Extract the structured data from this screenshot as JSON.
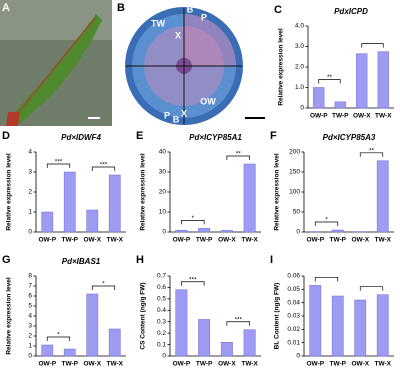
{
  "images": [
    {
      "panel": "A"
    },
    {
      "panel": "B",
      "labels": [
        "TW",
        "X",
        "P",
        "B",
        "OW",
        "X",
        "P",
        "B"
      ]
    }
  ],
  "chart_data": [
    {
      "type": "bar",
      "panel": "C",
      "title": "PdxICPD",
      "y_label": "Relative expression level",
      "categories": [
        "OW-P",
        "TW-P",
        "OW-X",
        "TW-X"
      ],
      "values": [
        1.0,
        0.3,
        2.65,
        2.75
      ],
      "color": "#9d9cf2",
      "ylim": [
        0,
        4
      ],
      "yticks": [
        0,
        {
          "value": 1,
          "label": "1.0"
        },
        {
          "value": 2,
          "label": "2.0"
        },
        {
          "value": 3,
          "label": "3.0"
        },
        {
          "value": 4,
          "label": "4.0"
        }
      ],
      "significance": [
        "**",
        null
      ]
    },
    {
      "type": "bar",
      "panel": "D",
      "title": "Pd×IDWF4",
      "y_label": "Relative expression level",
      "categories": [
        "OW-P",
        "TW-P",
        "OW-X",
        "TW-X"
      ],
      "values": [
        1.0,
        3.0,
        1.1,
        2.85
      ],
      "color": "#9d9cf2",
      "ylim": [
        0,
        4
      ],
      "yticks": [
        0,
        1,
        2,
        3,
        4
      ],
      "significance": [
        "***",
        "***"
      ]
    },
    {
      "type": "bar",
      "panel": "E",
      "title": "Pd×ICYP85A1",
      "y_label": "Relative expression level",
      "categories": [
        "OW-P",
        "TW-P",
        "OW-X",
        "TW-X"
      ],
      "values": [
        0.9,
        1.8,
        0.8,
        34
      ],
      "color": "#9d9cf2",
      "ylim": [
        0,
        40
      ],
      "yticks": [
        0,
        10,
        20,
        30,
        40
      ],
      "significance": [
        "*",
        "**"
      ]
    },
    {
      "type": "bar",
      "panel": "F",
      "title": "Pd×ICYP85A3",
      "y_label": "Relative expression level",
      "categories": [
        "OW-P",
        "TW-P",
        "OW-X",
        "TW-X"
      ],
      "values": [
        1,
        5,
        1,
        178
      ],
      "color": "#9d9cf2",
      "ylim": [
        0,
        200
      ],
      "yticks": [
        0,
        50,
        100,
        150,
        200
      ],
      "significance": [
        "*",
        "**"
      ]
    },
    {
      "type": "bar",
      "panel": "G",
      "title": "Pd×IBAS1",
      "y_label": "Relative expression level",
      "categories": [
        "OW-P",
        "TW-P",
        "OW-X",
        "TW-X"
      ],
      "values": [
        1.1,
        0.7,
        6.2,
        2.7
      ],
      "color": "#9d9cf2",
      "ylim": [
        0,
        8
      ],
      "yticks": [
        0,
        1,
        2,
        3,
        4,
        5,
        6,
        7,
        8
      ],
      "significance": [
        "*",
        "*"
      ]
    },
    {
      "type": "bar",
      "panel": "H",
      "y_label": "CS Content (ng/g FW)",
      "categories": [
        "OW-P",
        "TW-P",
        "OW-X",
        "TW-X"
      ],
      "values": [
        0.58,
        0.32,
        0.12,
        0.23
      ],
      "color": "#9d9cf2",
      "ylim": [
        0,
        0.7
      ],
      "yticks": [
        0,
        0.1,
        0.2,
        0.3,
        0.4,
        0.5,
        0.6,
        0.7
      ],
      "significance": [
        "***",
        "***"
      ]
    },
    {
      "type": "bar",
      "panel": "I",
      "y_label": "BL Content (ng/g FW)",
      "categories": [
        "OW-P",
        "TW-P",
        "OW-X",
        "TW-X"
      ],
      "values": [
        0.053,
        0.045,
        0.042,
        0.046
      ],
      "color": "#9d9cf2",
      "ylim": [
        0,
        0.06
      ],
      "yticks": [
        0,
        0.01,
        0.02,
        0.03,
        0.04,
        0.05,
        0.06
      ],
      "significance": [
        null,
        null
      ]
    }
  ]
}
